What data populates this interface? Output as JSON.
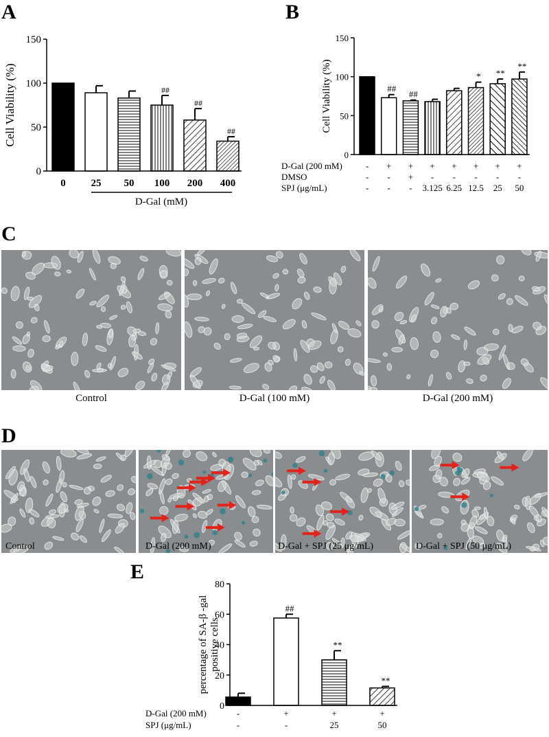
{
  "panels": {
    "a": "A",
    "b": "B",
    "c": "C",
    "d": "D",
    "e": "E"
  },
  "chart_data": [
    {
      "id": "A",
      "type": "bar",
      "ylabel": "Cell Viability (%)",
      "xlabel": "D-Gal (mM)",
      "categories": [
        "0",
        "25",
        "50",
        "100",
        "200",
        "400"
      ],
      "values": [
        100,
        89,
        83,
        75,
        58,
        34
      ],
      "errors": [
        0,
        8,
        8,
        11,
        13,
        5
      ],
      "significance": [
        "",
        "",
        "",
        "##",
        "##",
        "##"
      ],
      "patterns": [
        "solid",
        "open",
        "hlines",
        "vlines",
        "diag",
        "diag-dense"
      ],
      "ylim": [
        0,
        150
      ],
      "yticks": [
        "0",
        "50",
        "100",
        "150"
      ]
    },
    {
      "id": "B",
      "type": "bar",
      "ylabel": "Cell Viability (%)",
      "values": [
        100,
        73,
        69,
        68,
        82,
        86,
        91,
        97
      ],
      "errors": [
        0,
        4,
        1,
        3,
        3,
        7,
        6,
        9
      ],
      "significance": [
        "",
        "##",
        "##",
        "",
        "",
        "*",
        "**",
        "**"
      ],
      "patterns": [
        "solid",
        "open",
        "hlines",
        "vlines",
        "diag",
        "diag-dense",
        "back-diag",
        "back-diag-dense"
      ],
      "ylim": [
        0,
        150
      ],
      "yticks": [
        "0",
        "50",
        "100",
        "150"
      ],
      "conditions": [
        {
          "label": "D-Gal (200 mM)",
          "values": [
            "-",
            "+",
            "+",
            "+",
            "+",
            "+",
            "+",
            "+"
          ]
        },
        {
          "label": "DMSO",
          "values": [
            "-",
            "-",
            "+",
            "-",
            "-",
            "-",
            "-",
            "-"
          ]
        },
        {
          "label": "SPJ (μg/mL)",
          "values": [
            "-",
            "-",
            "-",
            "3.125",
            "6.25",
            "12.5",
            "25",
            "50"
          ]
        }
      ]
    },
    {
      "id": "E",
      "type": "bar",
      "ylabel": "percentage of SA-β -gal positive cells",
      "values": [
        5.5,
        57.5,
        30,
        11.5
      ],
      "errors": [
        2.5,
        2.5,
        6,
        1
      ],
      "significance": [
        "",
        "##",
        "**",
        "**"
      ],
      "patterns": [
        "solid",
        "open",
        "hlines",
        "diag"
      ],
      "ylim": [
        0,
        80
      ],
      "yticks": [
        "0",
        "20",
        "40",
        "60",
        "80"
      ],
      "conditions": [
        {
          "label": "D-Gal (200 mM)",
          "values": [
            "-",
            "+",
            "+",
            "+"
          ]
        },
        {
          "label": "SPJ (μg/mL)",
          "values": [
            "-",
            "-",
            "25",
            "50"
          ]
        }
      ]
    }
  ],
  "panel_c": {
    "images": [
      {
        "caption": "Control",
        "density": 95
      },
      {
        "caption": "D-Gal (100 mM)",
        "density": 85
      },
      {
        "caption": "D-Gal (200 mM)",
        "density": 70
      }
    ]
  },
  "panel_d": {
    "images": [
      {
        "label": "Control",
        "arrows": 0
      },
      {
        "label": "D-Gal (200 mM)",
        "arrows": 8
      },
      {
        "label": "D-Gal + SPJ (25 μg/mL)",
        "arrows": 4
      },
      {
        "label": "D-Gal + SPJ (50 μg/mL)",
        "arrows": 3
      }
    ]
  },
  "colors": {
    "micro_bg": "#8a8d90",
    "cell": "#d6d8d6",
    "cell_edge": "#f2f2f2",
    "arrow": "#e0241b",
    "stain": "#2f7f8a"
  }
}
